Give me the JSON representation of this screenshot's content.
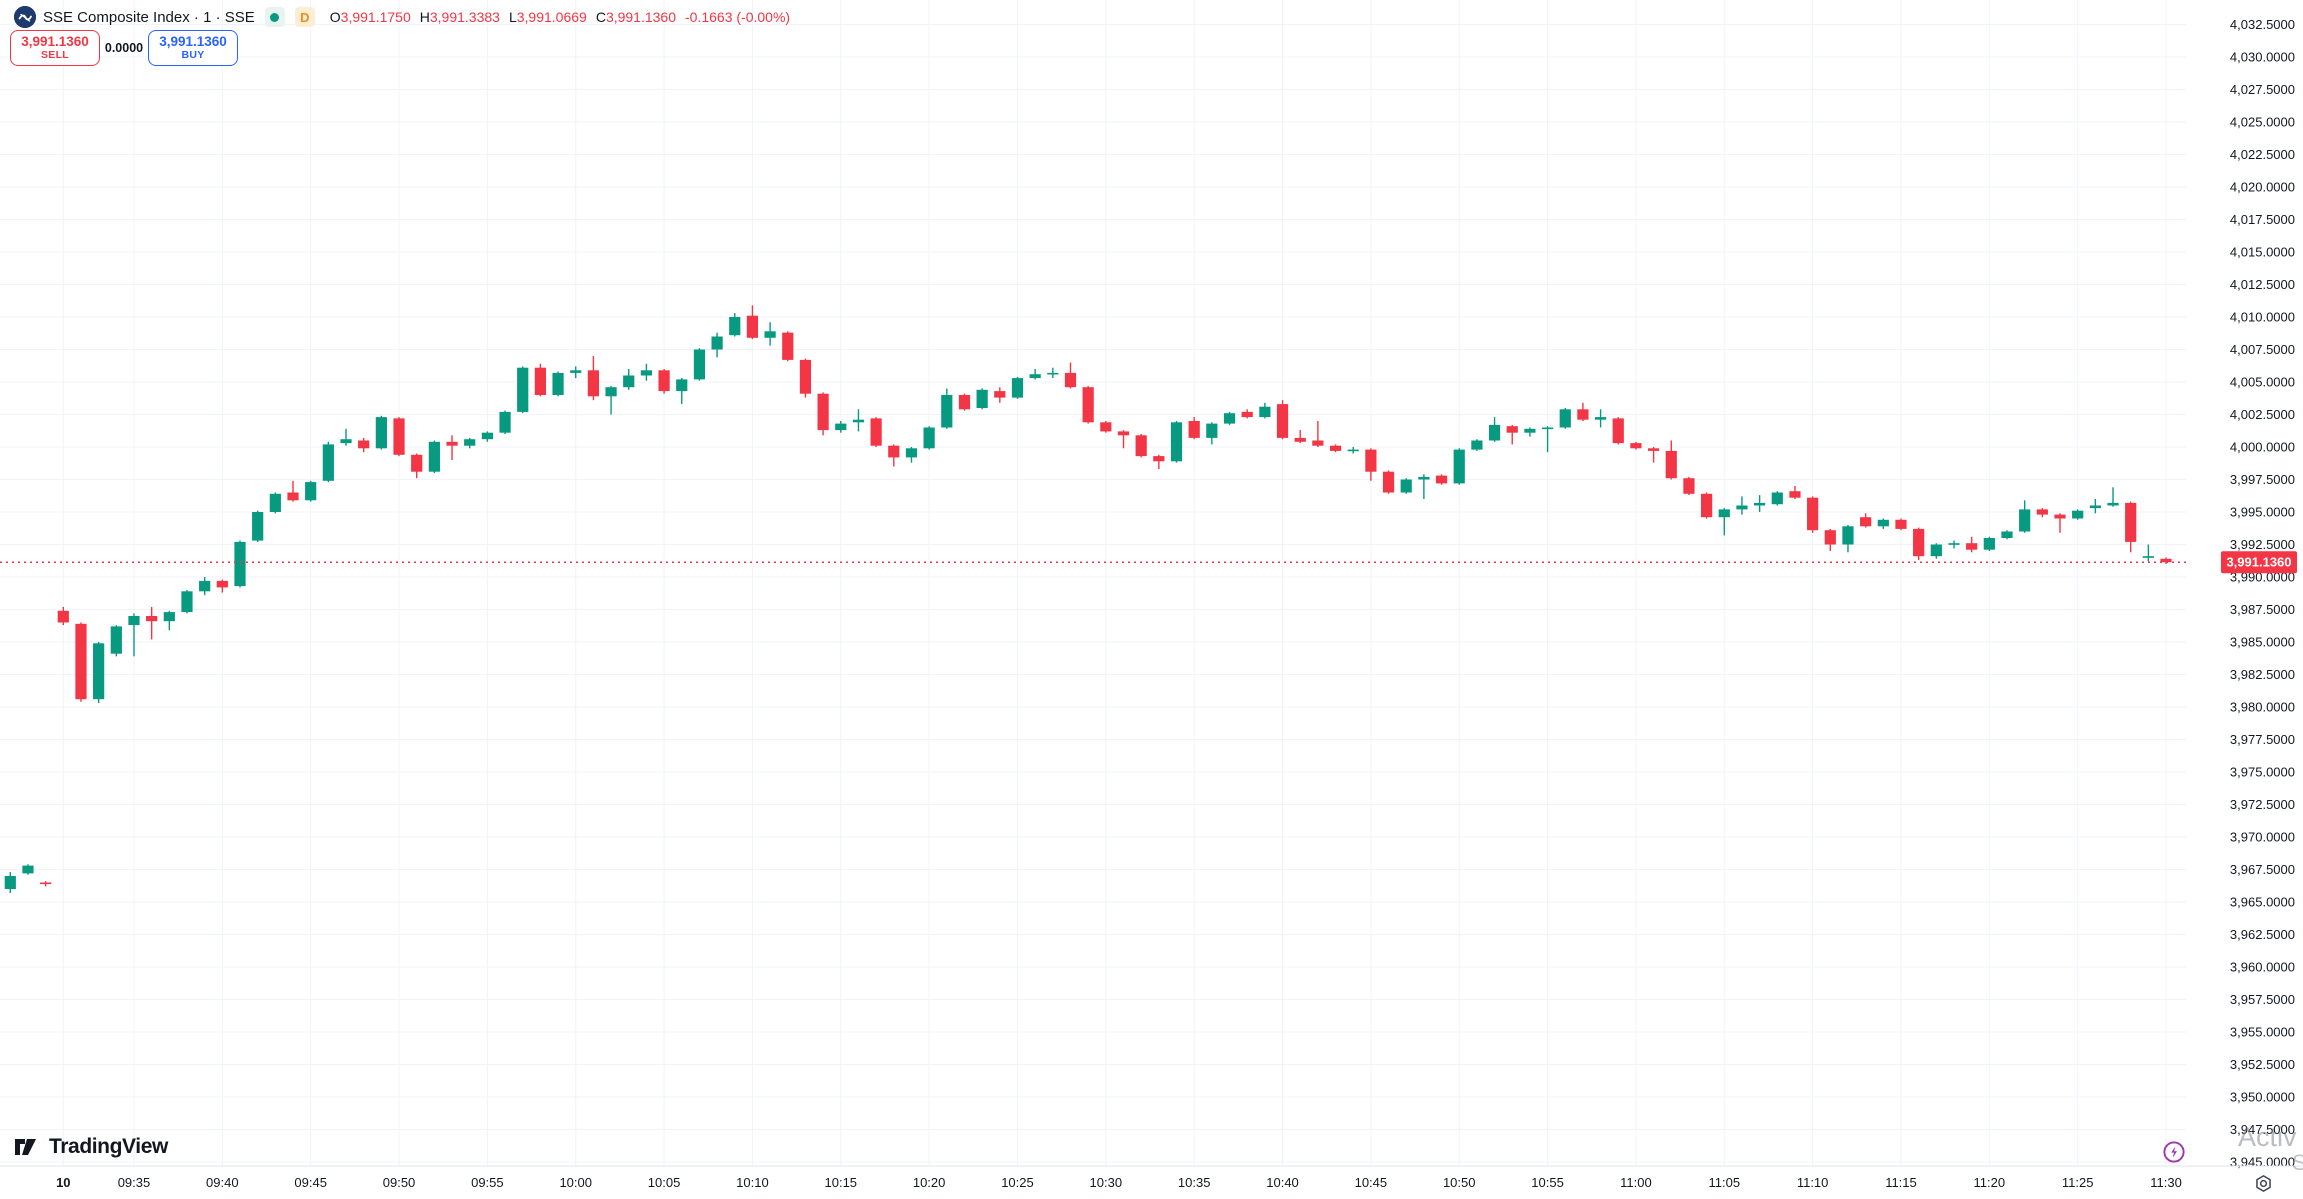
{
  "header": {
    "symbol_title": "SSE Composite Index · 1 · SSE",
    "interval_badge": "D",
    "ohlc": {
      "o_label": "O",
      "o_value": "3,991.1750",
      "h_label": "H",
      "h_value": "3,991.3383",
      "l_label": "L",
      "l_value": "3,991.0669",
      "c_label": "C",
      "c_value": "3,991.1360",
      "change": "-0.1663 (-0.00%)"
    }
  },
  "order_panel": {
    "sell_price": "3,991.1360",
    "sell_label": "SELL",
    "spread": "0.0000",
    "buy_price": "3,991.1360",
    "buy_label": "BUY"
  },
  "footer": {
    "logo_text": "TradingView"
  },
  "watermark": {
    "line1": "Activ",
    "line2": "S"
  },
  "colors": {
    "up": "#089981",
    "down": "#f23645",
    "sell": "#f23645",
    "buy": "#2962ff",
    "grid": "#f0f3fa",
    "axis_text": "#131722",
    "axis_border": "#e0e3eb",
    "last_price_bg": "#f23645",
    "bolt": "#9c36b5"
  },
  "chart_data": {
    "type": "candlestick",
    "title": "SSE Composite Index 1-minute chart",
    "interval": "1",
    "pre_session_bars": 3,
    "last_price": 3991.136,
    "last_price_label": "3,991.1360",
    "y_axis": {
      "min": 3945.0,
      "max": 4032.5,
      "step": 2.5,
      "ticks": [
        3945,
        3947.5,
        3950,
        3952.5,
        3955,
        3957.5,
        3960,
        3962.5,
        3965,
        3967.5,
        3970,
        3972.5,
        3975,
        3977.5,
        3980,
        3982.5,
        3985,
        3987.5,
        3990,
        3992.5,
        3995,
        3997.5,
        4000,
        4002.5,
        4005,
        4007.5,
        4010,
        4012.5,
        4015,
        4017.5,
        4020,
        4022.5,
        4025,
        4027.5,
        4030,
        4032.5
      ]
    },
    "x_axis": {
      "labels": [
        {
          "text": "10",
          "n": 0,
          "bold": true
        },
        {
          "text": "09:35",
          "n": 4
        },
        {
          "text": "09:40",
          "n": 9
        },
        {
          "text": "09:45",
          "n": 14
        },
        {
          "text": "09:50",
          "n": 19
        },
        {
          "text": "09:55",
          "n": 24
        },
        {
          "text": "10:00",
          "n": 29
        },
        {
          "text": "10:05",
          "n": 34
        },
        {
          "text": "10:10",
          "n": 39
        },
        {
          "text": "10:15",
          "n": 44
        },
        {
          "text": "10:20",
          "n": 49
        },
        {
          "text": "10:25",
          "n": 54
        },
        {
          "text": "10:30",
          "n": 59
        },
        {
          "text": "10:35",
          "n": 64
        },
        {
          "text": "10:40",
          "n": 69
        },
        {
          "text": "10:45",
          "n": 74
        },
        {
          "text": "10:50",
          "n": 79
        },
        {
          "text": "10:55",
          "n": 84
        },
        {
          "text": "11:00",
          "n": 89
        },
        {
          "text": "11:05",
          "n": 94
        },
        {
          "text": "11:10",
          "n": 99
        },
        {
          "text": "11:15",
          "n": 104
        },
        {
          "text": "11:20",
          "n": 109
        },
        {
          "text": "11:25",
          "n": 114
        },
        {
          "text": "11:30",
          "n": 119
        }
      ]
    },
    "candles": [
      [
        "14:58",
        3966.0,
        3967.3,
        3965.7,
        3967.0
      ],
      [
        "14:59",
        3967.2,
        3967.9,
        3967.1,
        3967.8
      ],
      [
        "15:00",
        3966.5,
        3966.6,
        3966.2,
        3966.4
      ],
      [
        "09:31",
        3987.4,
        3987.7,
        3986.3,
        3986.5
      ],
      [
        "09:32",
        3986.4,
        3986.5,
        3980.4,
        3980.6
      ],
      [
        "09:33",
        3980.6,
        3985.0,
        3980.3,
        3984.9
      ],
      [
        "09:34",
        3984.1,
        3986.3,
        3983.9,
        3986.2
      ],
      [
        "09:35",
        3986.3,
        3987.2,
        3983.9,
        3987.0
      ],
      [
        "09:36",
        3987.0,
        3987.7,
        3985.2,
        3986.6
      ],
      [
        "09:37",
        3986.6,
        3987.4,
        3985.9,
        3987.3
      ],
      [
        "09:38",
        3987.3,
        3989.0,
        3987.2,
        3988.9
      ],
      [
        "09:39",
        3988.9,
        3990.0,
        3988.6,
        3989.7
      ],
      [
        "09:40",
        3989.7,
        3989.8,
        3988.8,
        3989.2
      ],
      [
        "09:41",
        3989.3,
        3992.8,
        3989.2,
        3992.7
      ],
      [
        "09:42",
        3992.8,
        3995.1,
        3992.7,
        3995.0
      ],
      [
        "09:43",
        3995.0,
        3996.5,
        3994.9,
        3996.4
      ],
      [
        "09:44",
        3996.5,
        3997.4,
        3995.8,
        3995.9
      ],
      [
        "09:45",
        3995.9,
        3997.4,
        3995.8,
        3997.3
      ],
      [
        "09:46",
        3997.4,
        4000.4,
        3997.3,
        4000.2
      ],
      [
        "09:47",
        4000.3,
        4001.4,
        4000.1,
        4000.6
      ],
      [
        "09:48",
        4000.5,
        4000.7,
        3999.6,
        3999.9
      ],
      [
        "09:49",
        3999.9,
        4002.4,
        3999.8,
        4002.3
      ],
      [
        "09:50",
        4002.2,
        4002.3,
        3999.3,
        3999.4
      ],
      [
        "09:51",
        3999.4,
        3999.5,
        3997.6,
        3998.1
      ],
      [
        "09:52",
        3998.1,
        4000.5,
        3998.0,
        4000.4
      ],
      [
        "09:53",
        4000.4,
        4000.9,
        3999.0,
        4000.1
      ],
      [
        "09:54",
        4000.1,
        4000.7,
        3999.9,
        4000.6
      ],
      [
        "09:55",
        4000.6,
        4001.2,
        4000.4,
        4001.1
      ],
      [
        "09:56",
        4001.1,
        4002.8,
        4001.0,
        4002.7
      ],
      [
        "09:57",
        4002.7,
        4006.2,
        4002.6,
        4006.1
      ],
      [
        "09:58",
        4006.1,
        4006.4,
        4003.9,
        4004.0
      ],
      [
        "09:59",
        4004.0,
        4005.8,
        4003.9,
        4005.7
      ],
      [
        "10:00",
        4005.7,
        4006.2,
        4005.3,
        4005.9
      ],
      [
        "10:01",
        4005.9,
        4007.0,
        4003.6,
        4003.9
      ],
      [
        "10:02",
        4003.9,
        4004.7,
        4002.5,
        4004.6
      ],
      [
        "10:03",
        4004.6,
        4006.0,
        4004.4,
        4005.5
      ],
      [
        "10:04",
        4005.5,
        4006.4,
        4005.1,
        4005.9
      ],
      [
        "10:05",
        4005.9,
        4006.0,
        4004.1,
        4004.3
      ],
      [
        "10:06",
        4004.3,
        4005.3,
        4003.3,
        4005.2
      ],
      [
        "10:07",
        4005.2,
        4007.6,
        4005.1,
        4007.5
      ],
      [
        "10:08",
        4007.5,
        4008.8,
        4006.9,
        4008.5
      ],
      [
        "10:09",
        4008.6,
        4010.3,
        4008.5,
        4010.0
      ],
      [
        "10:10",
        4010.1,
        4010.9,
        4008.3,
        4008.4
      ],
      [
        "10:11",
        4008.4,
        4009.6,
        4007.8,
        4008.9
      ],
      [
        "10:12",
        4008.8,
        4008.9,
        4006.6,
        4006.7
      ],
      [
        "10:13",
        4006.7,
        4006.8,
        4003.8,
        4004.1
      ],
      [
        "10:14",
        4004.1,
        4004.2,
        4000.9,
        4001.3
      ],
      [
        "10:15",
        4001.3,
        4002.0,
        4001.1,
        4001.8
      ],
      [
        "10:16",
        4001.9,
        4002.9,
        4001.2,
        4002.1
      ],
      [
        "10:17",
        4002.2,
        4002.3,
        4000.0,
        4000.1
      ],
      [
        "10:18",
        4000.1,
        4000.2,
        3998.5,
        3999.2
      ],
      [
        "10:19",
        3999.2,
        4000.0,
        3998.8,
        3999.9
      ],
      [
        "10:20",
        3999.9,
        4001.6,
        3999.8,
        4001.5
      ],
      [
        "10:21",
        4001.5,
        4004.5,
        4001.4,
        4004.0
      ],
      [
        "10:22",
        4004.0,
        4004.1,
        4002.8,
        4002.9
      ],
      [
        "10:23",
        4003.0,
        4004.5,
        4002.9,
        4004.4
      ],
      [
        "10:24",
        4004.3,
        4004.6,
        4003.4,
        4003.8
      ],
      [
        "10:25",
        4003.8,
        4005.4,
        4003.7,
        4005.3
      ],
      [
        "10:26",
        4005.3,
        4006.0,
        4005.2,
        4005.6
      ],
      [
        "10:27",
        4005.6,
        4006.1,
        4005.3,
        4005.7
      ],
      [
        "10:28",
        4005.7,
        4006.5,
        4004.5,
        4004.6
      ],
      [
        "10:29",
        4004.6,
        4004.7,
        4001.8,
        4001.9
      ],
      [
        "10:30",
        4001.9,
        4002.0,
        4001.1,
        4001.2
      ],
      [
        "10:31",
        4001.2,
        4001.3,
        3999.9,
        4000.9
      ],
      [
        "10:32",
        4000.9,
        4001.0,
        3999.2,
        3999.3
      ],
      [
        "10:33",
        3999.3,
        3999.4,
        3998.3,
        3998.9
      ],
      [
        "10:34",
        3998.9,
        4002.0,
        3998.8,
        4001.9
      ],
      [
        "10:35",
        4002.0,
        4002.3,
        4000.6,
        4000.7
      ],
      [
        "10:36",
        4000.7,
        4001.9,
        4000.2,
        4001.8
      ],
      [
        "10:37",
        4001.8,
        4002.7,
        4001.7,
        4002.6
      ],
      [
        "10:38",
        4002.7,
        4002.9,
        4002.2,
        4002.3
      ],
      [
        "10:39",
        4002.3,
        4003.4,
        4002.2,
        4003.1
      ],
      [
        "10:40",
        4003.3,
        4003.6,
        4000.6,
        4000.7
      ],
      [
        "10:41",
        4000.7,
        4001.3,
        4000.3,
        4000.4
      ],
      [
        "10:42",
        4000.5,
        4002.0,
        4000.0,
        4000.1
      ],
      [
        "10:43",
        4000.1,
        4000.2,
        3999.6,
        3999.7
      ],
      [
        "10:44",
        3999.7,
        4000.0,
        3999.5,
        3999.8
      ],
      [
        "10:45",
        3999.8,
        3999.9,
        3997.4,
        3998.1
      ],
      [
        "10:46",
        3998.1,
        3998.2,
        3996.4,
        3996.5
      ],
      [
        "10:47",
        3996.5,
        3997.6,
        3996.4,
        3997.5
      ],
      [
        "10:48",
        3997.5,
        3997.9,
        3996.0,
        3997.7
      ],
      [
        "10:49",
        3997.8,
        3997.9,
        3997.1,
        3997.2
      ],
      [
        "10:50",
        3997.2,
        3999.9,
        3997.1,
        3999.8
      ],
      [
        "10:51",
        3999.8,
        4000.6,
        3999.7,
        4000.5
      ],
      [
        "10:52",
        4000.5,
        4002.3,
        4000.4,
        4001.7
      ],
      [
        "10:53",
        4001.6,
        4001.7,
        4000.2,
        4001.1
      ],
      [
        "10:54",
        4001.1,
        4001.5,
        4000.8,
        4001.4
      ],
      [
        "10:55",
        4001.4,
        4001.6,
        3999.6,
        4001.5
      ],
      [
        "10:56",
        4001.5,
        4003.0,
        4001.4,
        4002.9
      ],
      [
        "10:57",
        4002.9,
        4003.4,
        4002.0,
        4002.1
      ],
      [
        "10:58",
        4002.1,
        4002.9,
        4001.5,
        4002.3
      ],
      [
        "10:59",
        4002.2,
        4002.3,
        4000.2,
        4000.3
      ],
      [
        "11:00",
        4000.3,
        4000.4,
        3999.8,
        3999.9
      ],
      [
        "11:01",
        3999.9,
        4000.0,
        3998.8,
        3999.7
      ],
      [
        "11:02",
        3999.7,
        4000.5,
        3997.5,
        3997.6
      ],
      [
        "11:03",
        3997.6,
        3997.7,
        3996.3,
        3996.4
      ],
      [
        "11:04",
        3996.4,
        3996.5,
        3994.5,
        3994.6
      ],
      [
        "11:05",
        3994.6,
        3995.3,
        3993.2,
        3995.2
      ],
      [
        "11:06",
        3995.2,
        3996.2,
        3994.8,
        3995.5
      ],
      [
        "11:07",
        3995.5,
        3996.3,
        3995.0,
        3995.7
      ],
      [
        "11:08",
        3995.6,
        3996.6,
        3995.5,
        3996.5
      ],
      [
        "11:09",
        3996.6,
        3997.0,
        3996.0,
        3996.1
      ],
      [
        "11:10",
        3996.1,
        3996.2,
        3993.4,
        3993.6
      ],
      [
        "11:11",
        3993.6,
        3993.7,
        3992.0,
        3992.5
      ],
      [
        "11:12",
        3992.5,
        3994.0,
        3991.9,
        3993.9
      ],
      [
        "11:13",
        3994.6,
        3994.9,
        3993.8,
        3993.9
      ],
      [
        "11:14",
        3993.9,
        3994.5,
        3993.7,
        3994.4
      ],
      [
        "11:15",
        3994.4,
        3994.5,
        3993.6,
        3993.7
      ],
      [
        "11:16",
        3993.7,
        3993.8,
        3991.3,
        3991.6
      ],
      [
        "11:17",
        3991.6,
        3992.6,
        3991.4,
        3992.5
      ],
      [
        "11:18",
        3992.5,
        3992.8,
        3992.2,
        3992.6
      ],
      [
        "11:19",
        3992.6,
        3993.1,
        3991.9,
        3992.1
      ],
      [
        "11:20",
        3992.1,
        3993.1,
        3992.0,
        3993.0
      ],
      [
        "11:21",
        3993.0,
        3993.6,
        3992.9,
        3993.5
      ],
      [
        "11:22",
        3993.5,
        3995.9,
        3993.4,
        3995.2
      ],
      [
        "11:23",
        3995.2,
        3995.3,
        3994.6,
        3994.8
      ],
      [
        "11:24",
        3994.8,
        3994.9,
        3993.4,
        3994.5
      ],
      [
        "11:25",
        3994.5,
        3995.2,
        3994.4,
        3995.1
      ],
      [
        "11:26",
        3995.3,
        3996.0,
        3994.9,
        3995.5
      ],
      [
        "11:27",
        3995.5,
        3996.9,
        3995.4,
        3995.7
      ],
      [
        "11:28",
        3995.7,
        3995.8,
        3991.9,
        3992.7
      ],
      [
        "11:29",
        3991.5,
        3992.5,
        3991.2,
        3991.6
      ],
      [
        "11:30",
        3991.4,
        3991.5,
        3991.0,
        3991.14
      ]
    ]
  }
}
